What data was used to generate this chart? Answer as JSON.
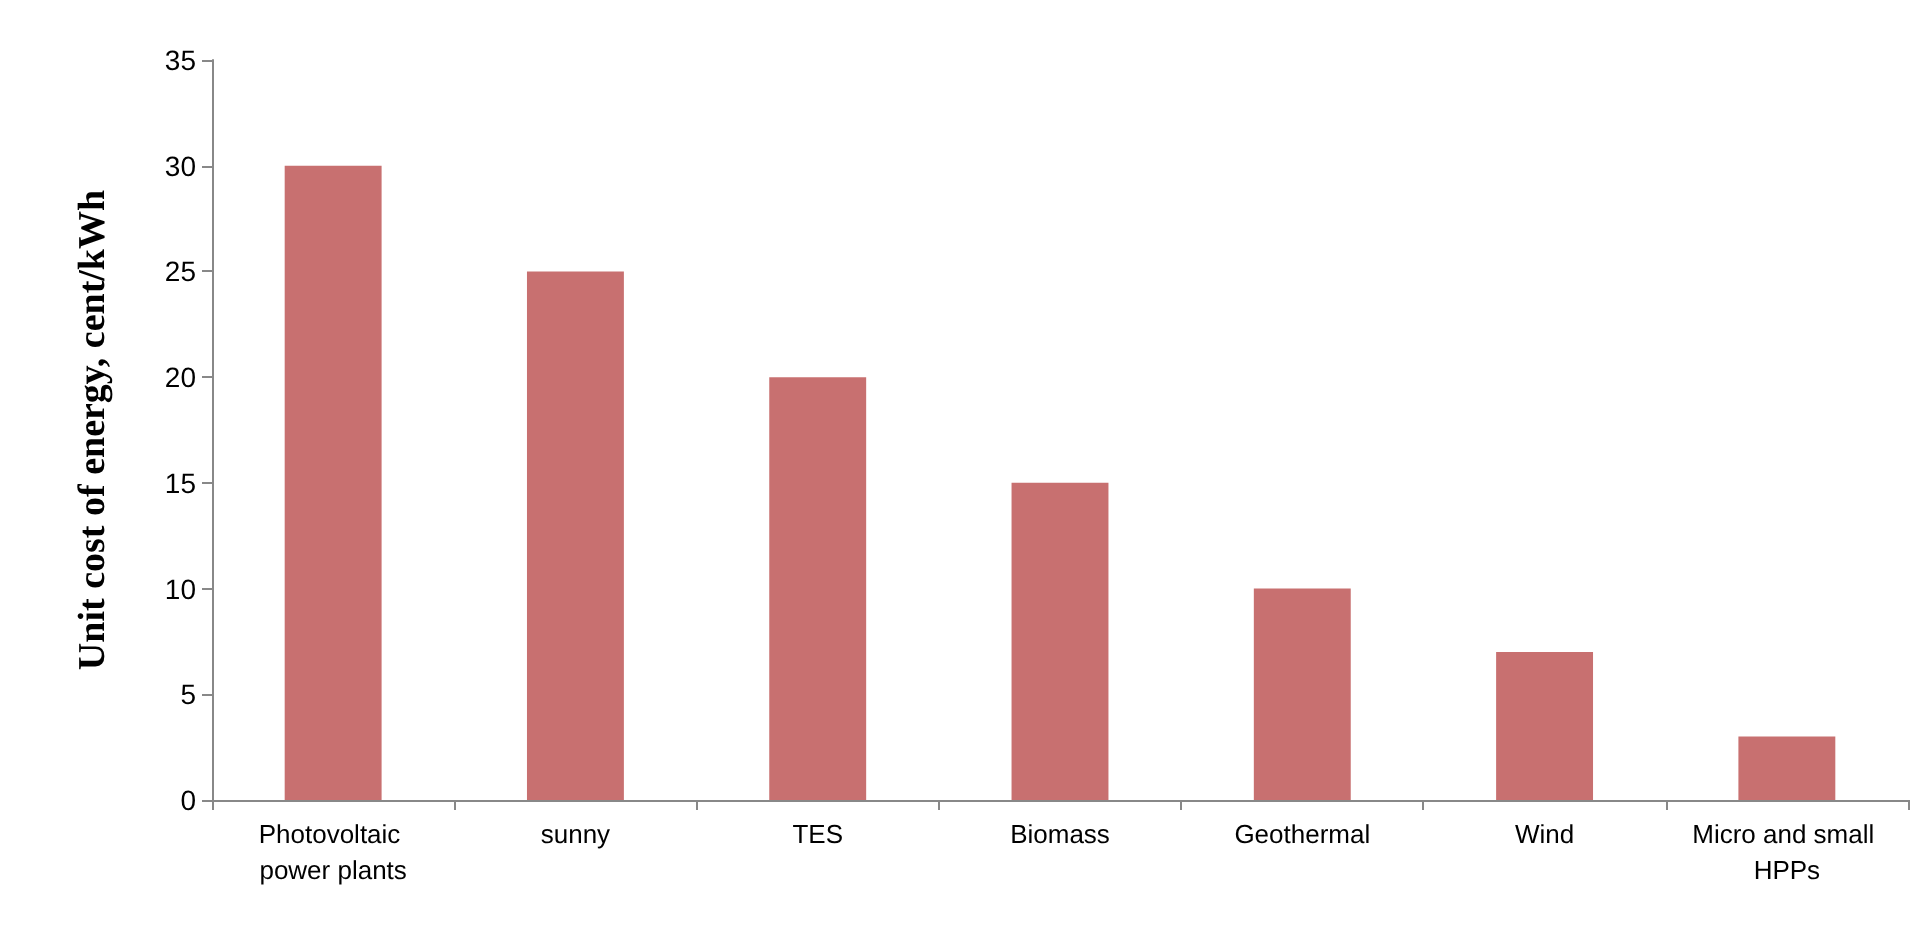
{
  "chart_data": {
    "type": "bar",
    "ylabel": "Unit cost of energy, cent/kWh",
    "categories": [
      "Photovoltaic power plants",
      "sunny",
      "TES",
      "Biomass",
      "Geothermal",
      "Wind",
      "Micro and small HPPs"
    ],
    "values": [
      30,
      25,
      20,
      15,
      10,
      7,
      3
    ],
    "color": "#c87070",
    "ylim": [
      0,
      35
    ],
    "yticks": [
      0,
      5,
      10,
      15,
      20,
      25,
      30,
      35
    ],
    "grid": false
  }
}
